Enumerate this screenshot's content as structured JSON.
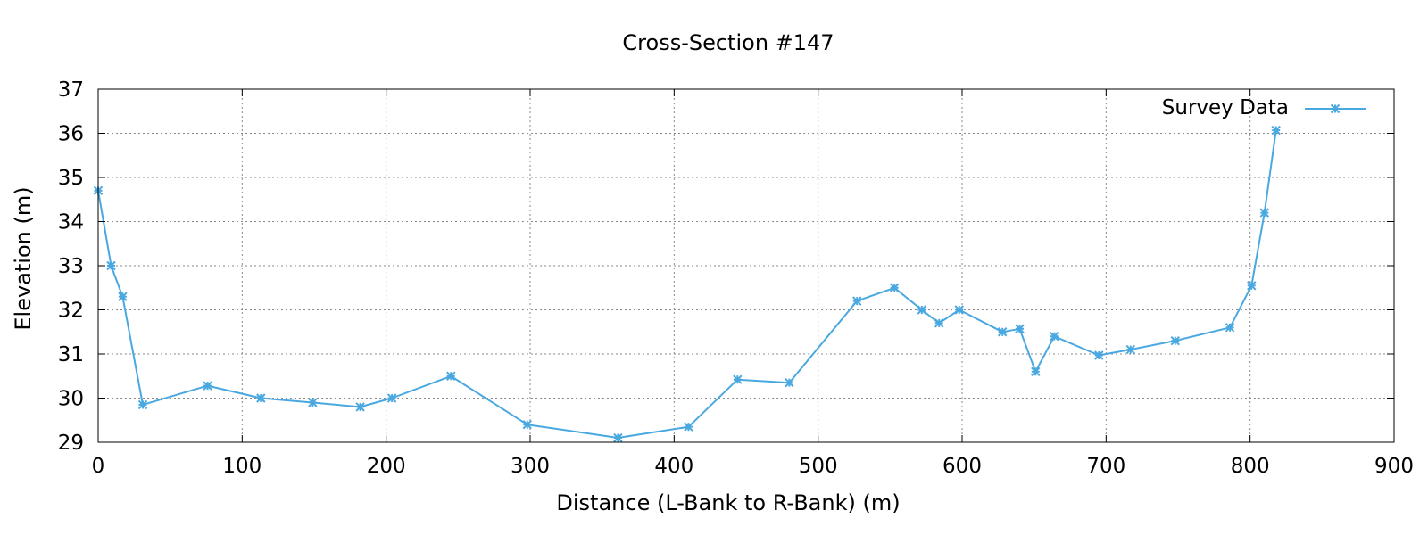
{
  "colors": {
    "series": "#4aa8e0",
    "grid": "#8a8a8a",
    "frame": "#000000"
  },
  "chart_data": {
    "type": "line",
    "title": "Cross-Section #147",
    "xlabel": "Distance (L-Bank to R-Bank) (m)",
    "ylabel": "Elevation (m)",
    "xlim": [
      0,
      900
    ],
    "ylim": [
      29,
      37
    ],
    "xticks": [
      0,
      100,
      200,
      300,
      400,
      500,
      600,
      700,
      800,
      900
    ],
    "yticks": [
      29,
      30,
      31,
      32,
      33,
      34,
      35,
      36,
      37
    ],
    "grid": true,
    "legend_position": "top-right",
    "series": [
      {
        "name": "Survey Data",
        "marker": "asterisk",
        "x": [
          0,
          9,
          17,
          31,
          76,
          113,
          149,
          182,
          204,
          245,
          298,
          361,
          410,
          444,
          480,
          527,
          553,
          572,
          584,
          598,
          628,
          640,
          651,
          664,
          695,
          717,
          748,
          786,
          801,
          810,
          818
        ],
        "y": [
          34.7,
          33.0,
          32.3,
          29.85,
          30.28,
          30.0,
          29.9,
          29.8,
          30.0,
          30.5,
          29.4,
          29.1,
          29.35,
          30.42,
          30.35,
          32.2,
          32.5,
          32.0,
          31.7,
          32.0,
          31.5,
          31.57,
          30.6,
          31.4,
          30.97,
          31.1,
          31.3,
          31.6,
          32.55,
          34.2,
          36.07
        ]
      }
    ]
  }
}
